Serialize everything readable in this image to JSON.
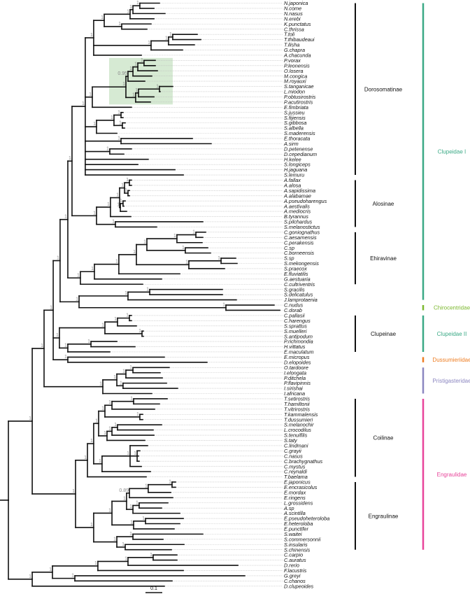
{
  "tree_format": "newick; number after colon is cumulative distance from root (substitutions/site); node labels are posterior support",
  "tree": "((((((((((((((N.japonica:0.9,N.come:0.867)1:0.783,N.nasus:0.933)1:0.742,N.erebi:0.867)1:0.725,(K.punctatus:0.85,C.thrissa:0.825)1:0.675)1:0.571,(((T.toli:1.125,T.thibaudeaui:1.146)1:0.979,T.ilisha:1.108)1:0.954,G.chapra:1.0375)1:0.85,A.chacunda:0.792)1:0.508,((((((P.vorax:0.875,P.leonensis:0.875)1:0.808,O.losera:0.8875)1:0.771,M.congica:0.854)1:0.742,M.royauxi:0.8125)0.95:0.7125,(((S.tanganicae:0.979,L.miodon:0.904)1:0.9,P.obtusirostris:0.867)1:0.775,P.acutirostris:0.846)1:0.758)1:0.7,E.fimbriata:0.733)1:0.5,(((S.jussieu:0.683,S.fijiensis:0.683)1:0.671,(S.gibbosa:0.696,S.albella:0.692)1:0.679)1:0.629,S.maderensis:0.646)1:0.525,(E.thoracata:1.096,A.sirm:1.208)1:0.671,(D.petenense:0.733,D.cepedianum:0.6875)1:0.604,H.kelee:0.833,S.longiceps:0.771,H.jaguana:0.992,S.lemuru:1.042)1:0.458,(((((A.fallax:0.733,A.alosa:0.733)1:0.721,(A.sapidissima:0.721,A.alabamae:0.721)1:0.7125)1:0.692,((A.pseudoharengus:0.696,A.aestivalis:0.6875)1:0.683,A.mediocris:0.704)1:0.667)1:0.6625,B.tyrannus:0.729)1:0.608,(S.pilchardus:1.158,S.melanostictus:0.883)1:0.6375)1:0.525)1:0.379,(((((((C.goniognathus:1.175,C.aesarnensis:1.158)1:1.117,C.perakensis:1.154)1:1.004,(C.sp:1.1875,C.borneensis:1.204)1:1.054)1:0.825,((S.sp:1.354,S.mekongensis:1.3625)1:1.267,S.praecox:1.2875)1:1.075)1:0.7625,E.fluviatilis:1.021)1:0.658,G.aestuaria:0.9125)1:0.5125,C.cultriventris:0.8)1:0.429)1:0.354,(((S.gracilis:1.275,S.delicatulus:1.275)1:0.842,J.lamprotaenia:1.358)1:0.7125,(C.nudus:1.583,C.dorab:1.617)1:1.296)1:0.421)1:0.308,((((C.pallasii:0.733,C.harengus:0.733)1:0.721,S.sprattus:0.7625)1:0.65,(S.muelleri:0.804,S.antipodum:0.804)1:0.796)1:0.575,((P.richmondia:0.646,H.vittatus:0.754)1:0.492,E.maculatum:0.604)1:0.354)1:0.304,(E.micropus:0.929,D.elopoides:1.183)1:0.354)1:0.267,((((O.tardoore:0.958,I.elongata:0.904)1:0.742,P.ditchela:0.917)1:0.7,(P.flavipinnis:0.942,I.sirishai:1.008)1:0.683)1:0.646,I.africana:0.854)1:0.5625)1:0.2125,(((((((T.setirostris:0.946,T.hamiltonii:0.9)1:0.746,T.vitrirostris:0.871)1:0.617,(T.kammalensis:0.8,T.dussumieri:0.8)1:0.783)1:0.575,(((S.melanochir:0.9125,L.crocodilus:0.8625)1:0.65,S.tenuifilis:0.867)1:0.617,S.taty:0.8125)1:0.5875)1:0.5375,((C.lindmani:0.829,(C.grayii:0.783,C.nasus:0.775,C.brachygnathus:0.779)1:0.767,C.mystus:0.792)1:0.725,C.reynaldi:0.846)1:0.558)1:0.508,T.baelama:0.821)1:0.471,((((((E.japonicus:0.996,E.encrasicolus:0.996)1:0.975,E.mordax:0.967)1:0.833,E.ringens:0.979)0.89:0.721,((L.grossidens:0.95,A.sp:0.9125)1:0.779,A.scintilla:1.021)1:0.742)1:0.704,((E.pseudoheteroloba:1.042,E.heteroloba:1.021)1:0.817,E.punctifer:0.9875)1:0.746)1:0.617,((S.waitei:1.158,S.commersonnii:0.921)1:0.742,(S.insularis:1.046,S.chinensis:0.971)1:0.696)1:0.646)1:0.508)1:0.4)1:0.142,(((((C.carpio:1.004,C.auratus:1.004)1:0.8625,D.rerio:1.367)1:0.7125,F.lacustris:1.042)1:0.533,(G.greyi:1.408,C.chanos:0.975)1:0.396)1:0.2625,D.clupeoides:0.929)1:0.142):0;",
  "highlight": {
    "from": "P.vorax",
    "to": "P.acutirostris",
    "color": "#cfe6cb"
  },
  "subfamilies": [
    {
      "label": "Dorosomatinae",
      "from": "N.japonica",
      "to": "S.lemuru"
    },
    {
      "label": "Alosinae",
      "from": "A.fallax",
      "to": "S.melanostictus"
    },
    {
      "label": "Ehiravinae",
      "from": "C.goniognathus",
      "to": "C.cultriventris"
    },
    {
      "label": "Clupeinae",
      "from": "C.pallasii",
      "to": "E.maculatum"
    },
    {
      "label": "Coilinae",
      "from": "T.setirostris",
      "to": "T.baelama"
    },
    {
      "label": "Engraulinae",
      "from": "E.japonicus",
      "to": "S.chinensis"
    }
  ],
  "families": [
    {
      "label": "Clupeidae I",
      "from": "N.japonica",
      "to": "J.lamprotaenia",
      "color": "#3aa985"
    },
    {
      "label": "Chirocentridae",
      "from": "C.nudus",
      "to": "C.dorab",
      "color": "#7cb82f"
    },
    {
      "label": "Clupeidae II",
      "from": "C.pallasii",
      "to": "E.maculatum",
      "color": "#3aa985"
    },
    {
      "label": "Dussumieriidae",
      "from": "E.micropus",
      "to": "D.elopoides",
      "color": "#ee7d22"
    },
    {
      "label": "Pristigasteridae",
      "from": "O.tardoore",
      "to": "I.africana",
      "color": "#8b86c0"
    },
    {
      "label": "Engraulidae",
      "from": "T.setirostris",
      "to": "S.chinensis",
      "color": "#e8449a"
    }
  ],
  "scale_bar": {
    "label": "0.1",
    "value": 0.1
  }
}
